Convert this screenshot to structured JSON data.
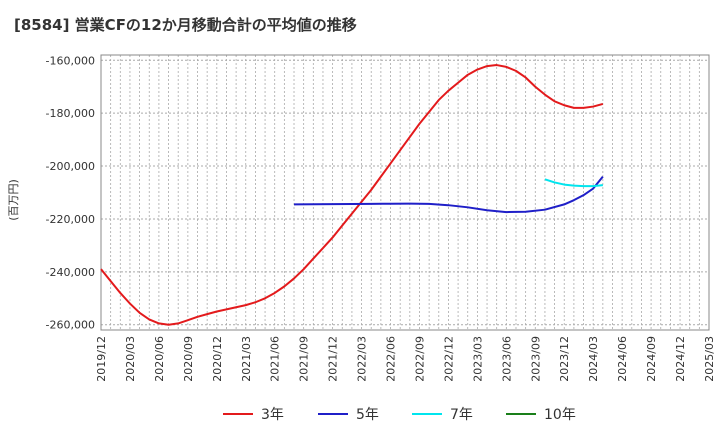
{
  "chart_data": {
    "type": "line",
    "title": "[8584]  営業CFの12か月移動合計の平均値の推移",
    "ylabel": "(百万円)",
    "xlabel": "",
    "ylim": [
      -262000,
      -158000
    ],
    "yticks": [
      -160000,
      -180000,
      -200000,
      -220000,
      -240000,
      -260000
    ],
    "ytick_labels": [
      "-160,000",
      "-180,000",
      "-200,000",
      "-220,000",
      "-240,000",
      "-260,000"
    ],
    "xtick_labels": [
      "2019/12",
      "2020/03",
      "2020/06",
      "2020/09",
      "2020/12",
      "2021/03",
      "2021/06",
      "2021/09",
      "2021/12",
      "2022/03",
      "2022/06",
      "2022/09",
      "2022/12",
      "2023/03",
      "2023/06",
      "2023/09",
      "2023/12",
      "2024/03",
      "2024/06",
      "2024/09",
      "2024/12",
      "2025/03"
    ],
    "grid": true,
    "legend_position": "bottom",
    "series": [
      {
        "name": "3年",
        "color": "#e31a1c",
        "points": [
          [
            "2019/12",
            -239000
          ],
          [
            "2020/01",
            -243500
          ],
          [
            "2020/02",
            -248000
          ],
          [
            "2020/03",
            -252000
          ],
          [
            "2020/04",
            -255500
          ],
          [
            "2020/05",
            -258000
          ],
          [
            "2020/06",
            -259500
          ],
          [
            "2020/07",
            -260000
          ],
          [
            "2020/08",
            -259500
          ],
          [
            "2020/09",
            -258300
          ],
          [
            "2020/10",
            -257000
          ],
          [
            "2020/11",
            -256000
          ],
          [
            "2020/12",
            -255000
          ],
          [
            "2021/01",
            -254200
          ],
          [
            "2021/02",
            -253400
          ],
          [
            "2021/03",
            -252600
          ],
          [
            "2021/04",
            -251500
          ],
          [
            "2021/05",
            -250000
          ],
          [
            "2021/06",
            -248000
          ],
          [
            "2021/07",
            -245500
          ],
          [
            "2021/08",
            -242500
          ],
          [
            "2021/09",
            -239000
          ],
          [
            "2021/10",
            -235000
          ],
          [
            "2021/11",
            -231000
          ],
          [
            "2021/12",
            -227000
          ],
          [
            "2022/01",
            -222500
          ],
          [
            "2022/02",
            -218000
          ],
          [
            "2022/03",
            -213500
          ],
          [
            "2022/04",
            -209000
          ],
          [
            "2022/05",
            -204000
          ],
          [
            "2022/06",
            -199000
          ],
          [
            "2022/07",
            -194000
          ],
          [
            "2022/08",
            -189000
          ],
          [
            "2022/09",
            -184000
          ],
          [
            "2022/10",
            -179500
          ],
          [
            "2022/11",
            -175000
          ],
          [
            "2022/12",
            -171500
          ],
          [
            "2023/01",
            -168500
          ],
          [
            "2023/02",
            -165500
          ],
          [
            "2023/03",
            -163500
          ],
          [
            "2023/04",
            -162200
          ],
          [
            "2023/05",
            -161800
          ],
          [
            "2023/06",
            -162500
          ],
          [
            "2023/07",
            -164000
          ],
          [
            "2023/08",
            -166500
          ],
          [
            "2023/09",
            -170000
          ],
          [
            "2023/10",
            -173000
          ],
          [
            "2023/11",
            -175500
          ],
          [
            "2023/12",
            -177000
          ],
          [
            "2024/01",
            -178000
          ],
          [
            "2024/02",
            -178000
          ],
          [
            "2024/03",
            -177500
          ],
          [
            "2024/04",
            -176500
          ]
        ]
      },
      {
        "name": "5年",
        "color": "#1f1fc8",
        "points": [
          [
            "2021/08",
            -214500
          ],
          [
            "2021/10",
            -214450
          ],
          [
            "2021/12",
            -214400
          ],
          [
            "2022/02",
            -214350
          ],
          [
            "2022/04",
            -214300
          ],
          [
            "2022/06",
            -214250
          ],
          [
            "2022/08",
            -214200
          ],
          [
            "2022/10",
            -214300
          ],
          [
            "2022/12",
            -214800
          ],
          [
            "2023/02",
            -215600
          ],
          [
            "2023/04",
            -216700
          ],
          [
            "2023/06",
            -217400
          ],
          [
            "2023/08",
            -217300
          ],
          [
            "2023/10",
            -216500
          ],
          [
            "2023/12",
            -214500
          ],
          [
            "2024/01",
            -212900
          ],
          [
            "2024/02",
            -211000
          ],
          [
            "2024/03",
            -208500
          ],
          [
            "2024/04",
            -204000
          ]
        ]
      },
      {
        "name": "7年",
        "color": "#00e5ee",
        "points": [
          [
            "2023/10",
            -205000
          ],
          [
            "2023/11",
            -206200
          ],
          [
            "2023/12",
            -207000
          ],
          [
            "2024/01",
            -207400
          ],
          [
            "2024/02",
            -207600
          ],
          [
            "2024/03",
            -207600
          ],
          [
            "2024/04",
            -207200
          ]
        ]
      },
      {
        "name": "10年",
        "color": "#1a7f1a",
        "points": []
      }
    ]
  }
}
